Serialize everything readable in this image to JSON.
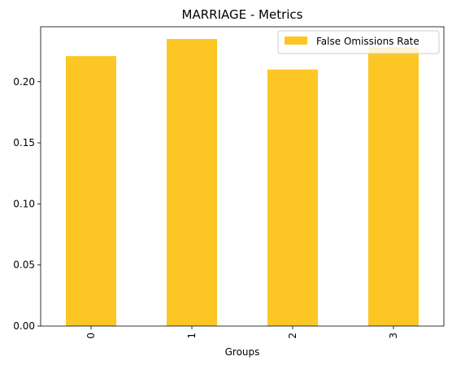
{
  "chart_data": {
    "type": "bar",
    "title": "MARRIAGE - Metrics",
    "xlabel": "Groups",
    "ylabel": "",
    "categories": [
      "0",
      "1",
      "2",
      "3"
    ],
    "series": [
      {
        "name": "False Omissions Rate",
        "values": [
          0.221,
          0.235,
          0.21,
          0.228
        ],
        "color": "#fcc624"
      }
    ],
    "ylim": [
      0,
      0.245
    ],
    "yticks": [
      0.0,
      0.05,
      0.1,
      0.15,
      0.2
    ],
    "ytick_labels": [
      "0.00",
      "0.05",
      "0.10",
      "0.15",
      "0.20"
    ],
    "grid": false,
    "legend_position": "top-right",
    "xtick_rotation": "vertical"
  }
}
